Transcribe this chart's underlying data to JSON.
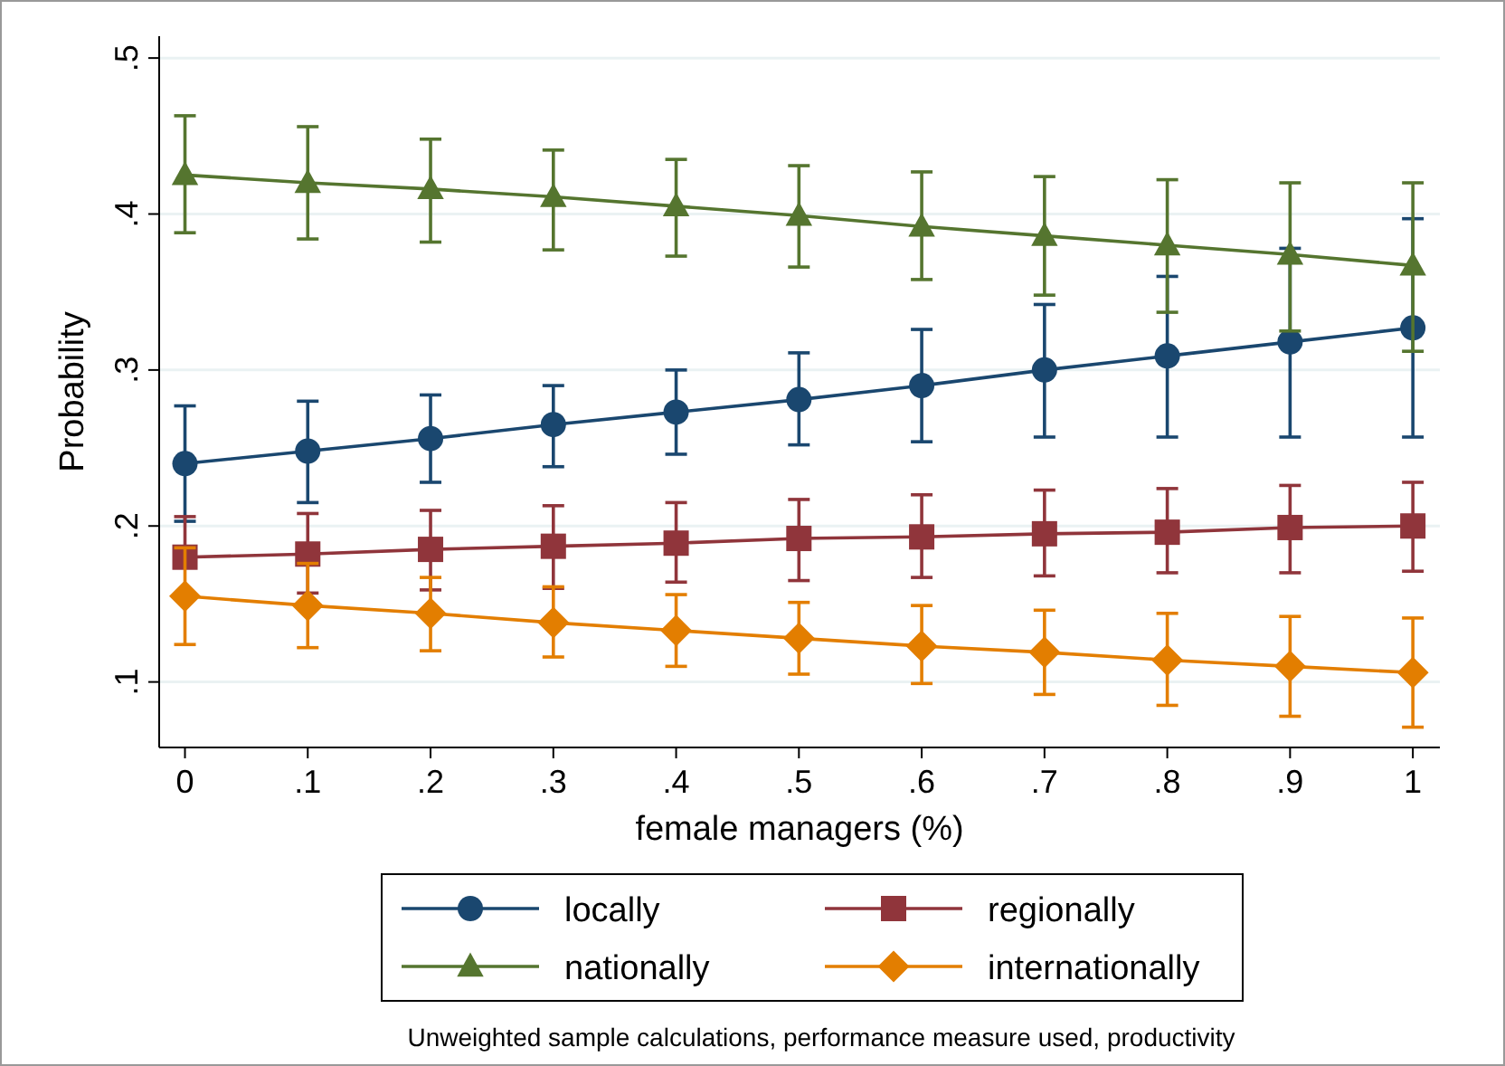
{
  "chart_data": {
    "type": "line",
    "xlabel": "female managers (%)",
    "ylabel": "Probability",
    "annotations": [
      "Unweighted sample calculations, performance measure used, productivity"
    ],
    "x": [
      0,
      0.1,
      0.2,
      0.3,
      0.4,
      0.5,
      0.6,
      0.7,
      0.8,
      0.9,
      1
    ],
    "xlim": [
      -0.021,
      1.022
    ],
    "ylim": [
      0.058,
      0.514
    ],
    "xticks": [
      0,
      {
        "value": 0.1,
        "label": ".1"
      },
      {
        "value": 0.2,
        "label": ".2"
      },
      {
        "value": 0.3,
        "label": ".3"
      },
      {
        "value": 0.4,
        "label": ".4"
      },
      {
        "value": 0.5,
        "label": ".5"
      },
      {
        "value": 0.6,
        "label": ".6"
      },
      {
        "value": 0.7,
        "label": ".7"
      },
      {
        "value": 0.8,
        "label": ".8"
      },
      {
        "value": 0.9,
        "label": ".9"
      },
      1
    ],
    "yticks": [
      {
        "value": 0.1,
        "label": ".1"
      },
      {
        "value": 0.2,
        "label": ".2"
      },
      {
        "value": 0.3,
        "label": ".3"
      },
      {
        "value": 0.4,
        "label": ".4"
      },
      {
        "value": 0.5,
        "label": ".5"
      }
    ],
    "grid": "y",
    "legend": "bottom",
    "series": [
      {
        "name": "locally",
        "color": "#1a476f",
        "marker": "circle",
        "values": [
          0.24,
          0.248,
          0.256,
          0.265,
          0.273,
          0.281,
          0.29,
          0.3,
          0.309,
          0.318,
          0.327
        ],
        "errors": [
          [
            0.203,
            0.277
          ],
          [
            0.215,
            0.28
          ],
          [
            0.228,
            0.284
          ],
          [
            0.238,
            0.29
          ],
          [
            0.246,
            0.3
          ],
          [
            0.252,
            0.311
          ],
          [
            0.254,
            0.326
          ],
          [
            0.257,
            0.342
          ],
          [
            0.257,
            0.36
          ],
          [
            0.257,
            0.378
          ],
          [
            0.257,
            0.397
          ]
        ]
      },
      {
        "name": "regionally",
        "color": "#90353b",
        "marker": "square",
        "values": [
          0.18,
          0.182,
          0.185,
          0.187,
          0.189,
          0.192,
          0.193,
          0.195,
          0.196,
          0.199,
          0.2
        ],
        "errors": [
          [
            0.18,
            0.206
          ],
          [
            0.157,
            0.208
          ],
          [
            0.159,
            0.21
          ],
          [
            0.16,
            0.213
          ],
          [
            0.164,
            0.215
          ],
          [
            0.165,
            0.217
          ],
          [
            0.167,
            0.22
          ],
          [
            0.168,
            0.223
          ],
          [
            0.17,
            0.224
          ],
          [
            0.17,
            0.226
          ],
          [
            0.171,
            0.228
          ]
        ]
      },
      {
        "name": "nationally",
        "color": "#55752f",
        "marker": "triangle",
        "values": [
          0.425,
          0.42,
          0.416,
          0.411,
          0.405,
          0.399,
          0.392,
          0.386,
          0.38,
          0.374,
          0.367
        ],
        "errors": [
          [
            0.388,
            0.463
          ],
          [
            0.384,
            0.456
          ],
          [
            0.382,
            0.448
          ],
          [
            0.377,
            0.441
          ],
          [
            0.373,
            0.435
          ],
          [
            0.366,
            0.431
          ],
          [
            0.358,
            0.427
          ],
          [
            0.348,
            0.424
          ],
          [
            0.337,
            0.422
          ],
          [
            0.325,
            0.42
          ],
          [
            0.312,
            0.42
          ]
        ]
      },
      {
        "name": "internationally",
        "color": "#e37e00",
        "marker": "diamond",
        "values": [
          0.155,
          0.149,
          0.144,
          0.138,
          0.133,
          0.128,
          0.123,
          0.119,
          0.114,
          0.11,
          0.106
        ],
        "errors": [
          [
            0.124,
            0.186
          ],
          [
            0.122,
            0.176
          ],
          [
            0.12,
            0.167
          ],
          [
            0.116,
            0.161
          ],
          [
            0.11,
            0.156
          ],
          [
            0.105,
            0.151
          ],
          [
            0.099,
            0.149
          ],
          [
            0.092,
            0.146
          ],
          [
            0.085,
            0.144
          ],
          [
            0.078,
            0.142
          ],
          [
            0.071,
            0.141
          ]
        ]
      }
    ]
  }
}
